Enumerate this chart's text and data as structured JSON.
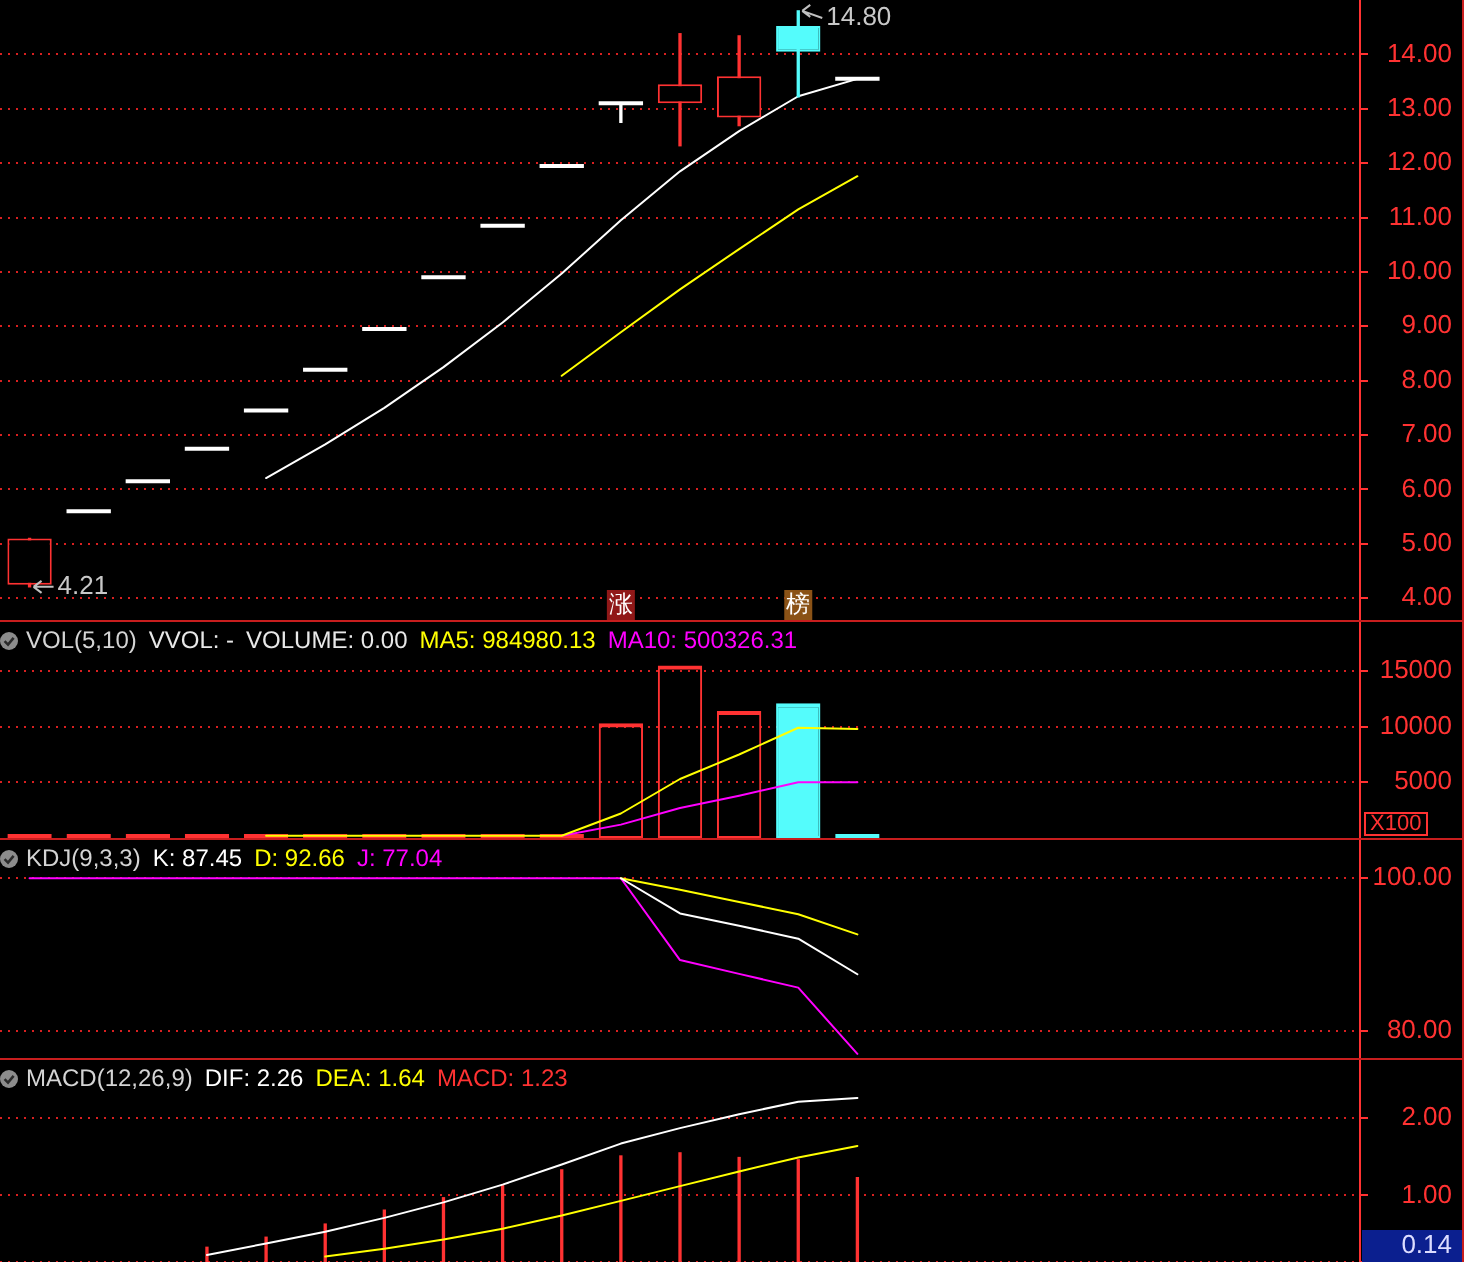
{
  "chart_data": [
    {
      "type": "candlestick",
      "categories": [
        null,
        null,
        null,
        null,
        null,
        null,
        null,
        null,
        null,
        null,
        null,
        null,
        null,
        null,
        null,
        null,
        null,
        null,
        null,
        null,
        null,
        null,
        null
      ],
      "ohlc": [
        [
          4.25,
          5.1,
          4.21,
          5.1
        ],
        [
          5.6,
          5.6,
          5.6,
          5.6
        ],
        [
          6.15,
          6.15,
          6.15,
          6.15
        ],
        [
          6.75,
          6.75,
          6.75,
          6.75
        ],
        [
          7.45,
          7.45,
          7.45,
          7.45
        ],
        [
          8.2,
          8.2,
          8.2,
          8.2
        ],
        [
          8.95,
          8.95,
          8.95,
          8.95
        ],
        [
          9.9,
          9.9,
          9.9,
          9.9
        ],
        [
          10.85,
          10.85,
          10.85,
          10.85
        ],
        [
          11.95,
          11.95,
          11.95,
          11.95
        ],
        [
          13.1,
          13.1,
          12.75,
          13.1
        ],
        [
          13.1,
          14.38,
          12.32,
          13.45
        ],
        [
          12.84,
          14.34,
          12.69,
          13.6
        ],
        [
          14.52,
          14.8,
          13.22,
          14.05
        ],
        [
          13.55,
          13.55,
          13.55,
          13.55
        ],
        null,
        null,
        null,
        null,
        null,
        null,
        null,
        null
      ],
      "colors": [
        "#ff3232",
        "#ffffff",
        "#ffffff",
        "#ffffff",
        "#ffffff",
        "#ffffff",
        "#ffffff",
        "#ffffff",
        "#ffffff",
        "#ffffff",
        "#ffffff",
        "#ff3232",
        "#ff3232",
        "#54fcfc",
        "#ffffff",
        null,
        null,
        null,
        null,
        null,
        null,
        null,
        null
      ],
      "value_labels": [
        null,
        null,
        null,
        null,
        null,
        null,
        null,
        null,
        null,
        null,
        "涨",
        null,
        null,
        "榜",
        null,
        null,
        null,
        null,
        null,
        null,
        null,
        null,
        null
      ],
      "series": [
        {
          "type": "line",
          "color": "#ffffff",
          "values": [
            null,
            null,
            null,
            null,
            6.21,
            6.83,
            7.5,
            8.25,
            9.07,
            9.97,
            10.95,
            11.85,
            12.59,
            13.23,
            13.55,
            null,
            null,
            null,
            null,
            null,
            null,
            null,
            null
          ]
        },
        {
          "type": "line",
          "color": "#ffff00",
          "values": [
            null,
            null,
            null,
            null,
            null,
            null,
            null,
            null,
            null,
            8.09,
            8.89,
            9.68,
            10.42,
            11.15,
            11.76,
            null,
            null,
            null,
            null,
            null,
            null,
            null,
            null
          ]
        }
      ],
      "ylim": [
        3.6,
        15
      ],
      "yticks": [
        {
          "value": 4,
          "label": "4.00"
        },
        {
          "value": 5,
          "label": "5.00"
        },
        {
          "value": 6,
          "label": "6.00"
        },
        {
          "value": 7,
          "label": "7.00"
        },
        {
          "value": 8,
          "label": "8.00"
        },
        {
          "value": 9,
          "label": "9.00"
        },
        {
          "value": 10,
          "label": "10.00"
        },
        {
          "value": 11,
          "label": "11.00"
        },
        {
          "value": 12,
          "label": "12.00"
        },
        {
          "value": 13,
          "label": "13.00"
        },
        {
          "value": 14,
          "label": "14.00"
        }
      ],
      "grid": "y",
      "tick_labels": "y",
      "annotations": [
        "14.80",
        "4.21"
      ]
    },
    {
      "type": "bar",
      "title": "VOL(5,10)",
      "annotations": [
        "VVOL: -",
        "VOLUME: 0.00"
      ],
      "categories": [
        null,
        null,
        null,
        null,
        null,
        null,
        null,
        null,
        null,
        null,
        null,
        null,
        null,
        null,
        null,
        null,
        null,
        null,
        null,
        null,
        null,
        null,
        null
      ],
      "series": [
        {
          "type": "bar",
          "colors": [
            "#ff3232",
            "#ff3232",
            "#ff3232",
            "#ff3232",
            "#ff3232",
            "#ff3232",
            "#ff3232",
            "#ff3232",
            "#ff3232",
            "#ff3232",
            "#ff3232",
            "#ff3232",
            "#ff3232",
            "#54fcfc",
            "#54fcfc",
            null,
            null,
            null,
            null,
            null,
            null,
            null,
            null
          ],
          "values": [
            300,
            100,
            100,
            100,
            300,
            200,
            100,
            100,
            200,
            200,
            10300,
            15500,
            11400,
            12100,
            0,
            null,
            null,
            null,
            null,
            null,
            null,
            null,
            null
          ]
        },
        {
          "type": "line",
          "name": "MA5: 984980.13",
          "color": "#ffff00",
          "values": [
            null,
            null,
            null,
            null,
            200,
            200,
            200,
            200,
            200,
            200,
            2200,
            5300,
            7500,
            9900,
            9800,
            null,
            null,
            null,
            null,
            null,
            null,
            null,
            null
          ]
        },
        {
          "type": "line",
          "name": "MA10: 500326.31",
          "color": "#ff00ff",
          "values": [
            null,
            null,
            null,
            null,
            null,
            null,
            null,
            null,
            null,
            200,
            1200,
            2700,
            3800,
            5000,
            5000,
            null,
            null,
            null,
            null,
            null,
            null,
            null,
            null
          ]
        }
      ],
      "ylabel": "X100",
      "ylim": [
        0,
        19400
      ],
      "yticks": [
        5000,
        10000,
        15000
      ],
      "grid": "y",
      "legend": "top left",
      "tick_labels": "y"
    },
    {
      "type": "line",
      "title": "KDJ(9,3,3)",
      "categories": [
        null,
        null,
        null,
        null,
        null,
        null,
        null,
        null,
        null,
        null,
        null,
        null,
        null,
        null,
        null,
        null,
        null,
        null,
        null,
        null,
        null,
        null,
        null
      ],
      "series": [
        {
          "name": "K: 87.45",
          "color": "#ffffff",
          "values": [
            null,
            null,
            null,
            null,
            null,
            null,
            null,
            null,
            null,
            null,
            100,
            95.4,
            93.8,
            92.1,
            87.45,
            null,
            null,
            null,
            null,
            null,
            null,
            null,
            null
          ]
        },
        {
          "name": "D: 92.66",
          "color": "#ffff00",
          "values": [
            null,
            null,
            null,
            null,
            null,
            null,
            null,
            null,
            null,
            null,
            100,
            98.5,
            96.9,
            95.3,
            92.66,
            null,
            null,
            null,
            null,
            null,
            null,
            null,
            null
          ]
        },
        {
          "name": "J: 77.04",
          "color": "#ff00ff",
          "values": [
            100,
            100,
            100,
            100,
            100,
            100,
            100,
            100,
            100,
            100,
            100,
            89.3,
            87.5,
            85.7,
            77.04,
            null,
            null,
            null,
            null,
            null,
            null,
            null,
            null
          ]
        }
      ],
      "ylim": [
        76.5,
        105
      ],
      "yticks": [
        {
          "value": 80,
          "label": "80.00"
        },
        {
          "value": 100,
          "label": "100.00"
        }
      ],
      "grid": "y",
      "legend": "top left",
      "tick_labels": "y"
    },
    {
      "type": "line",
      "title": "MACD(12,26,9)",
      "categories": [
        null,
        null,
        null,
        null,
        null,
        null,
        null,
        null,
        null,
        null,
        null,
        null,
        null,
        null,
        null,
        null,
        null,
        null,
        null,
        null,
        null,
        null,
        null
      ],
      "series": [
        {
          "name": "DIF: 2.26",
          "color": "#ffffff",
          "values": [
            null,
            null,
            null,
            0.23,
            0.38,
            0.53,
            0.71,
            0.91,
            1.14,
            1.4,
            1.67,
            1.87,
            2.05,
            2.21,
            2.26,
            null,
            null,
            null,
            null,
            null,
            null,
            null,
            null
          ]
        },
        {
          "name": "DEA: 1.64",
          "color": "#ffff00",
          "values": [
            null,
            null,
            null,
            null,
            null,
            0.21,
            0.31,
            0.43,
            0.57,
            0.74,
            0.93,
            1.12,
            1.31,
            1.49,
            1.64,
            null,
            null,
            null,
            null,
            null,
            null,
            null,
            null
          ]
        },
        {
          "type": "bar",
          "name": "MACD: 1.23",
          "color": "#ff3232",
          "values": [
            null,
            null,
            null,
            0.33,
            0.46,
            0.63,
            0.81,
            0.97,
            1.14,
            1.33,
            1.51,
            1.55,
            1.49,
            1.46,
            1.23,
            null,
            null,
            null,
            null,
            null,
            null,
            null,
            null
          ]
        }
      ],
      "ylim": [
        0.14,
        2.75
      ],
      "yticks": [
        0.14,
        {
          "value": 1,
          "label": "1.00"
        },
        {
          "value": 2,
          "label": "2.00"
        }
      ],
      "grid": "y",
      "legend": "top left",
      "tick_labels": "y"
    }
  ]
}
